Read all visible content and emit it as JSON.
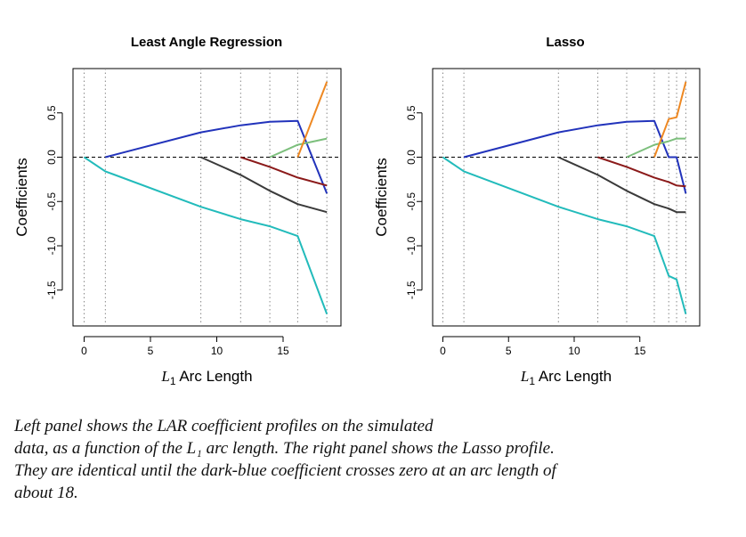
{
  "chart_data": [
    {
      "type": "line",
      "title": "Least Angle Regression",
      "xlabel_symbol": "L",
      "xlabel_sub": "1",
      "xlabel_rest": " Arc Length",
      "ylabel": "Coefficients",
      "xlim": [
        0,
        18.6
      ],
      "ylim": [
        -1.8,
        0.85
      ],
      "xticks": [
        0,
        5,
        10,
        15
      ],
      "yticks": [
        0.5,
        0.0,
        -0.5,
        -1.0,
        -1.5
      ],
      "ytick_labels": [
        "0.5",
        "0.0",
        "-0.5",
        "-1.0",
        "-1.5"
      ],
      "zero_line": true,
      "step_lines": [
        0,
        1.6,
        8.8,
        11.8,
        14.0,
        16.1,
        18.3
      ],
      "series": [
        {
          "name": "dark-blue",
          "color": "#2233bb",
          "x": [
            1.6,
            8.8,
            11.8,
            14.0,
            16.1,
            18.3
          ],
          "y": [
            0.0,
            0.28,
            0.36,
            0.4,
            0.41,
            -0.41
          ]
        },
        {
          "name": "cyan",
          "color": "#22bbbb",
          "x": [
            0,
            1.6,
            8.8,
            11.8,
            14.0,
            16.1,
            18.3
          ],
          "y": [
            0.0,
            -0.16,
            -0.56,
            -0.7,
            -0.78,
            -0.89,
            -1.77
          ]
        },
        {
          "name": "dark-grey",
          "color": "#3a3a3a",
          "x": [
            8.8,
            11.8,
            14.0,
            16.1,
            18.3
          ],
          "y": [
            0.0,
            -0.2,
            -0.38,
            -0.53,
            -0.62
          ]
        },
        {
          "name": "dark-red",
          "color": "#8b1a1a",
          "x": [
            11.8,
            14.0,
            16.1,
            18.3
          ],
          "y": [
            0.0,
            -0.11,
            -0.23,
            -0.32
          ]
        },
        {
          "name": "green",
          "color": "#7cbf7c",
          "x": [
            14.0,
            16.1,
            18.3
          ],
          "y": [
            0.0,
            0.14,
            0.21
          ]
        },
        {
          "name": "orange",
          "color": "#ee8822",
          "x": [
            16.1,
            18.3
          ],
          "y": [
            0.0,
            0.85
          ]
        }
      ]
    },
    {
      "type": "line",
      "title": "Lasso",
      "xlabel_symbol": "L",
      "xlabel_sub": "1",
      "xlabel_rest": " Arc Length",
      "ylabel": "Coefficients",
      "xlim": [
        0,
        18.6
      ],
      "ylim": [
        -1.8,
        0.85
      ],
      "xticks": [
        0,
        5,
        10,
        15
      ],
      "yticks": [
        0.5,
        0.0,
        -0.5,
        -1.0,
        -1.5
      ],
      "ytick_labels": [
        "0.5",
        "0.0",
        "-0.5",
        "-1.0",
        "-1.5"
      ],
      "zero_line": true,
      "step_lines": [
        0,
        1.6,
        8.8,
        11.8,
        14.0,
        16.1,
        17.2,
        17.8,
        18.5
      ],
      "series": [
        {
          "name": "dark-blue",
          "color": "#2233bb",
          "x": [
            1.6,
            8.8,
            11.8,
            14.0,
            16.1,
            17.2,
            17.8,
            18.5
          ],
          "y": [
            0.0,
            0.28,
            0.36,
            0.4,
            0.41,
            0.0,
            0.0,
            -0.41
          ]
        },
        {
          "name": "cyan",
          "color": "#22bbbb",
          "x": [
            0,
            1.6,
            8.8,
            11.8,
            14.0,
            16.1,
            17.2,
            17.8,
            18.5
          ],
          "y": [
            0.0,
            -0.16,
            -0.56,
            -0.7,
            -0.78,
            -0.89,
            -1.34,
            -1.38,
            -1.77
          ]
        },
        {
          "name": "dark-grey",
          "color": "#3a3a3a",
          "x": [
            8.8,
            11.8,
            14.0,
            16.1,
            17.2,
            17.8,
            18.5
          ],
          "y": [
            0.0,
            -0.2,
            -0.38,
            -0.53,
            -0.58,
            -0.62,
            -0.62
          ]
        },
        {
          "name": "dark-red",
          "color": "#8b1a1a",
          "x": [
            11.8,
            14.0,
            16.1,
            17.2,
            17.8,
            18.5
          ],
          "y": [
            0.0,
            -0.11,
            -0.23,
            -0.28,
            -0.32,
            -0.33
          ]
        },
        {
          "name": "green",
          "color": "#7cbf7c",
          "x": [
            14.0,
            16.1,
            17.2,
            17.8,
            18.5
          ],
          "y": [
            0.0,
            0.14,
            0.18,
            0.21,
            0.21
          ]
        },
        {
          "name": "orange",
          "color": "#ee8822",
          "x": [
            16.1,
            17.2,
            17.8,
            18.5
          ],
          "y": [
            0.0,
            0.43,
            0.45,
            0.85
          ]
        }
      ]
    }
  ],
  "caption": {
    "lines": [
      "Left panel shows the LAR coefficient profiles on the simulated",
      "data, as a function of the L₁ arc length. The right panel shows the Lasso profile.",
      "They are identical until the dark-blue coefficient crosses zero at an arc length of",
      "about 18."
    ]
  }
}
